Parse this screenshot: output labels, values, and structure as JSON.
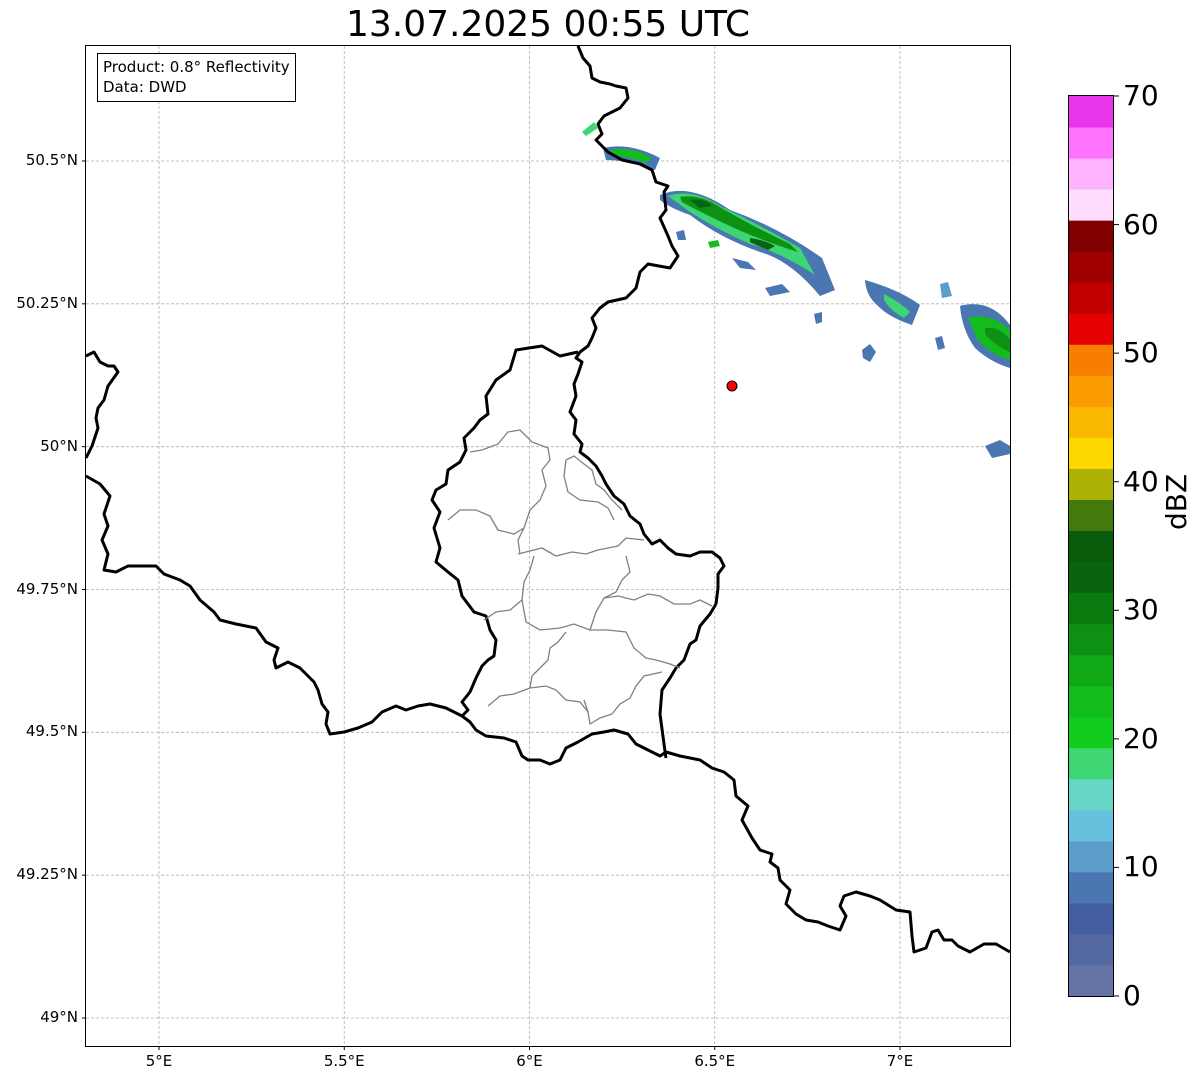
{
  "title": "13.07.2025 00:55 UTC",
  "info": {
    "product": "Product: 0.8° Reflectivity",
    "source": "Data: DWD"
  },
  "map": {
    "lon_range": [
      4.8,
      7.3
    ],
    "lat_range": [
      48.95,
      50.7
    ],
    "lat_ticks": [
      {
        "value": 50.5,
        "label": "50.5°N"
      },
      {
        "value": 50.25,
        "label": "50.25°N"
      },
      {
        "value": 50.0,
        "label": "50°N"
      },
      {
        "value": 49.75,
        "label": "49.75°N"
      },
      {
        "value": 49.5,
        "label": "49.5°N"
      },
      {
        "value": 49.25,
        "label": "49.25°N"
      },
      {
        "value": 49.0,
        "label": "49°N"
      }
    ],
    "lon_ticks": [
      {
        "value": 5.0,
        "label": "5°E"
      },
      {
        "value": 5.5,
        "label": "5.5°E"
      },
      {
        "value": 6.0,
        "label": "6°E"
      },
      {
        "value": 6.5,
        "label": "6.5°E"
      },
      {
        "value": 7.0,
        "label": "7°E"
      }
    ],
    "grid": true,
    "radar_site_color": "#ff0000"
  },
  "colorbar": {
    "unit": "dBZ",
    "min": 0,
    "max": 70,
    "step": 2.5,
    "ticks": [
      "0",
      "10",
      "20",
      "30",
      "40",
      "50",
      "60",
      "70"
    ],
    "colors": [
      "#6673a6",
      "#5368a0",
      "#445ea2",
      "#4a76b1",
      "#5b9ec9",
      "#67c1de",
      "#66d7c6",
      "#3dd672",
      "#13cd1e",
      "#12bd1b",
      "#10a815",
      "#0e9012",
      "#0a7a0f",
      "#086410",
      "#0a5a0c",
      "#427a0c",
      "#adb106",
      "#ffd700",
      "#fbb800",
      "#fb9c00",
      "#f87e00",
      "#e60000",
      "#c20000",
      "#a00000",
      "#800000",
      "#ffddff",
      "#ffb3ff",
      "#ff73ff",
      "#e935eb"
    ]
  }
}
